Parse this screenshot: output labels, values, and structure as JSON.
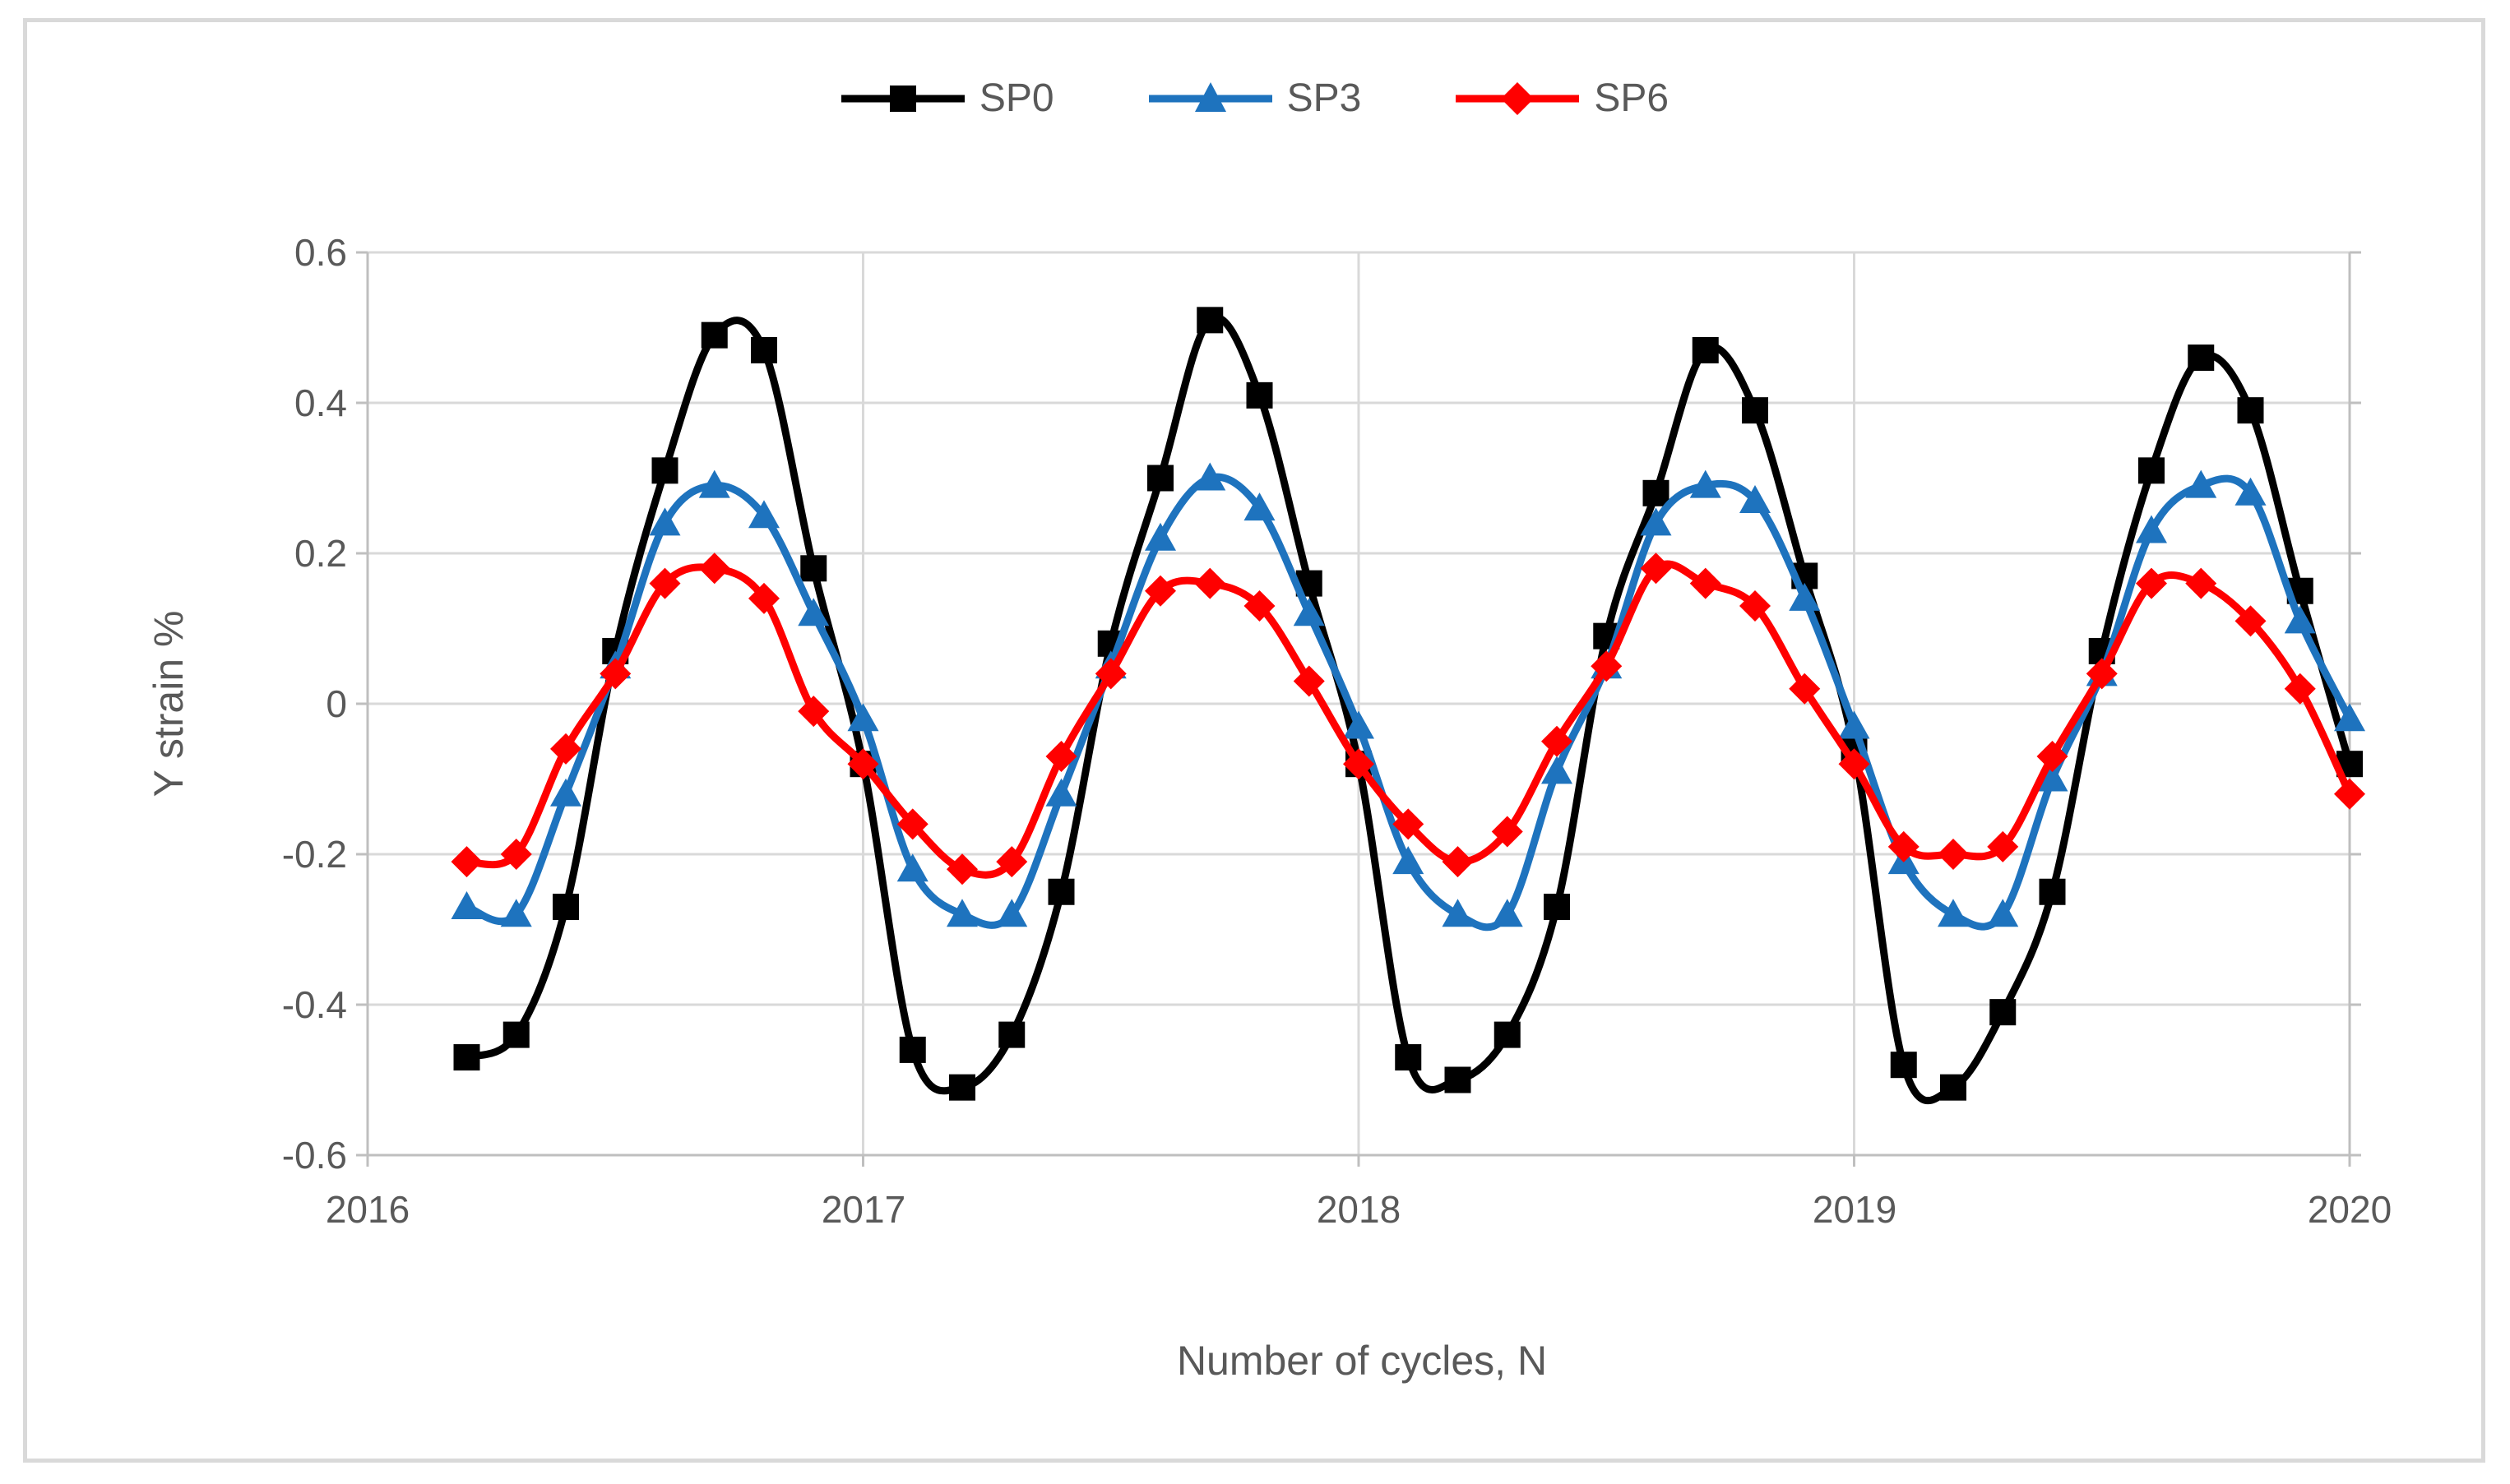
{
  "figure": {
    "background_color": "#FFFFFF",
    "border_color": "#D9D9D9",
    "gridline_color": "#D9D9D9",
    "axis_line_color": "#BFBFBF",
    "text_color": "#595959"
  },
  "chart_data": {
    "type": "line",
    "title": "",
    "xlabel": "Number of cycles, N",
    "ylabel": "Y strain %",
    "x_tick_labels": [
      "2016",
      "2017",
      "2018",
      "2019",
      "2020"
    ],
    "y_tick_labels": [
      "0.6",
      "0.4",
      "0.2",
      "0",
      "-0.2",
      "-0.4",
      "-0.6"
    ],
    "xlim": [
      2016,
      2020
    ],
    "ylim": [
      -0.6,
      0.6
    ],
    "y_step": 0.2,
    "grid": true,
    "legend_position": "top-center",
    "line_style": "smooth",
    "x": [
      2016.2,
      2016.3,
      2016.4,
      2016.5,
      2016.6,
      2016.7,
      2016.8,
      2016.9,
      2017.0,
      2017.1,
      2017.2,
      2017.3,
      2017.4,
      2017.5,
      2017.6,
      2017.7,
      2017.8,
      2017.9,
      2018.0,
      2018.1,
      2018.2,
      2018.3,
      2018.4,
      2018.5,
      2018.6,
      2018.7,
      2018.8,
      2018.9,
      2019.0,
      2019.1,
      2019.2,
      2019.3,
      2019.4,
      2019.5,
      2019.6,
      2019.7,
      2019.8,
      2019.9,
      2020.0
    ],
    "series": [
      {
        "name": "SP0",
        "color": "#000000",
        "marker": "square",
        "values": [
          -0.47,
          -0.44,
          -0.27,
          0.07,
          0.31,
          0.49,
          0.47,
          0.18,
          -0.08,
          -0.46,
          -0.51,
          -0.44,
          -0.25,
          0.08,
          0.3,
          0.51,
          0.41,
          0.16,
          -0.08,
          -0.47,
          -0.5,
          -0.44,
          -0.27,
          0.09,
          0.28,
          0.47,
          0.39,
          0.17,
          -0.06,
          -0.48,
          -0.51,
          -0.41,
          -0.25,
          0.07,
          0.31,
          0.46,
          0.39,
          0.15,
          -0.08
        ]
      },
      {
        "name": "SP3",
        "color": "#1E73BE",
        "marker": "triangle",
        "values": [
          -0.27,
          -0.28,
          -0.12,
          0.05,
          0.24,
          0.29,
          0.25,
          0.12,
          -0.02,
          -0.22,
          -0.28,
          -0.28,
          -0.12,
          0.05,
          0.22,
          0.3,
          0.26,
          0.12,
          -0.03,
          -0.21,
          -0.28,
          -0.28,
          -0.09,
          0.05,
          0.24,
          0.29,
          0.27,
          0.14,
          -0.03,
          -0.21,
          -0.28,
          -0.28,
          -0.1,
          0.04,
          0.23,
          0.29,
          0.28,
          0.11,
          -0.02
        ]
      },
      {
        "name": "SP6",
        "color": "#FF0000",
        "marker": "diamond",
        "values": [
          -0.21,
          -0.2,
          -0.06,
          0.04,
          0.16,
          0.18,
          0.14,
          -0.01,
          -0.08,
          -0.16,
          -0.22,
          -0.21,
          -0.07,
          0.04,
          0.15,
          0.16,
          0.13,
          0.03,
          -0.08,
          -0.16,
          -0.21,
          -0.17,
          -0.05,
          0.05,
          0.18,
          0.16,
          0.13,
          0.02,
          -0.08,
          -0.19,
          -0.2,
          -0.19,
          -0.07,
          0.04,
          0.16,
          0.16,
          0.11,
          0.02,
          -0.12
        ]
      }
    ]
  }
}
